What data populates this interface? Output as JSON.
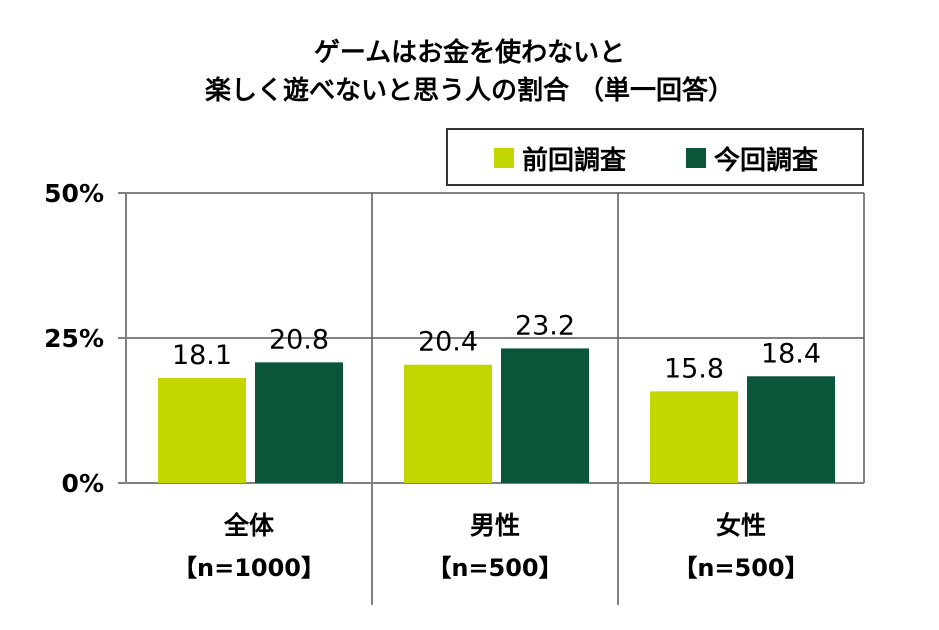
{
  "chart_data": {
    "type": "bar",
    "title_lines": [
      "ゲームはお金を使わないと",
      "楽しく遊べないと思う人の割合 （単一回答）"
    ],
    "xlabel": "",
    "ylabel": "",
    "ylim": [
      0,
      50
    ],
    "y_ticks": [
      0,
      25,
      50
    ],
    "y_tick_labels": [
      "0%",
      "25%",
      "50%"
    ],
    "categories": [
      {
        "name": "全体",
        "n_label": "【n=1000】"
      },
      {
        "name": "男性",
        "n_label": "【n=500】"
      },
      {
        "name": "女性",
        "n_label": "【n=500】"
      }
    ],
    "series": [
      {
        "name": "前回調査",
        "color": "#c3d600",
        "values": [
          18.1,
          20.4,
          15.8
        ],
        "labels": [
          "18.1",
          "20.4",
          "15.8"
        ]
      },
      {
        "name": "今回調査",
        "color": "#0b5538",
        "values": [
          20.8,
          23.2,
          18.4
        ],
        "labels": [
          "20.8",
          "23.2",
          "18.4"
        ]
      }
    ],
    "grid": true,
    "legend_position": "top-right",
    "colors": {
      "gridline": "#595959",
      "axis": "#808080",
      "legend_border": "#333333"
    }
  }
}
